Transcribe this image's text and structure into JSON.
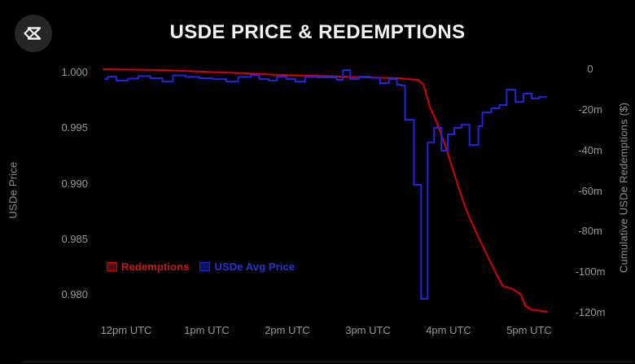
{
  "header": {
    "title": "USDE PRICE & REDEMPTIONS"
  },
  "logo": {
    "icon": "ethena-sigma-logo"
  },
  "colors": {
    "background": "#000000",
    "title_text": "#f2f2f2",
    "axis_text": "#969696",
    "red_line": "#d90000",
    "blue_line": "#2024e8",
    "legend_red_text": "#cc1414",
    "legend_blue_text": "#2433e0",
    "legend_red_fill": "#560d0d",
    "legend_blue_fill": "#0f1260"
  },
  "chart_data": {
    "type": "line",
    "title": "USDE PRICE & REDEMPTIONS",
    "grid": "off",
    "x_axis": {
      "unit": "hour of day (UTC, 24h decimal)",
      "tick_hours": [
        12,
        13,
        14,
        15,
        16,
        17
      ],
      "tick_labels": [
        "12pm UTC",
        "1pm UTC",
        "2pm UTC",
        "3pm UTC",
        "4pm UTC",
        "5pm UTC"
      ],
      "range_hours": [
        11.66,
        17.42
      ]
    },
    "y_left": {
      "label": "USDe Price",
      "ticks": [
        1.0,
        0.995,
        0.99,
        0.985,
        0.98
      ],
      "tick_labels": [
        "1.000",
        "0.995",
        "0.990",
        "0.985",
        "0.980"
      ],
      "range": [
        1.0005,
        0.9782
      ]
    },
    "y_right": {
      "label": "Cumulative USDe Redemptions ($)",
      "ticks": [
        0,
        -20,
        -40,
        -60,
        -80,
        -100,
        -120
      ],
      "tick_labels": [
        "0",
        "-20m",
        "-40m",
        "-60m",
        "-80m",
        "-100m",
        "-120m"
      ],
      "unit": "millions of dollars",
      "range": [
        1,
        -121.5
      ]
    },
    "legend": [
      {
        "label": "Redemptions",
        "series": "red"
      },
      {
        "label": "USDe Avg Price",
        "series": "blue"
      }
    ],
    "series": [
      {
        "name": "Redemptions",
        "axis": "right",
        "style": "line",
        "points": [
          [
            11.71,
            0
          ],
          [
            12.45,
            -0.4
          ],
          [
            13.06,
            -1.4
          ],
          [
            13.5,
            -2.0
          ],
          [
            13.77,
            -2.6
          ],
          [
            14.48,
            -3.4
          ],
          [
            14.98,
            -4.0
          ],
          [
            15.38,
            -4.4
          ],
          [
            15.62,
            -5.2
          ],
          [
            15.69,
            -7.6
          ],
          [
            15.77,
            -18.9
          ],
          [
            15.84,
            -24.9
          ],
          [
            15.89,
            -30.1
          ],
          [
            15.97,
            -38.9
          ],
          [
            16.06,
            -50.2
          ],
          [
            16.14,
            -60.2
          ],
          [
            16.22,
            -69.4
          ],
          [
            16.34,
            -80.3
          ],
          [
            16.5,
            -93.5
          ],
          [
            16.6,
            -101.5
          ],
          [
            16.67,
            -106.8
          ],
          [
            16.8,
            -108.3
          ],
          [
            16.9,
            -111.2
          ],
          [
            16.95,
            -116.4
          ],
          [
            17.02,
            -118.4
          ],
          [
            17.23,
            -119.6
          ]
        ]
      },
      {
        "name": "USDe Avg Price",
        "axis": "left",
        "style": "step-after",
        "end_hour": 17.22,
        "points": [
          [
            11.73,
            0.99941
          ],
          [
            11.77,
            0.99963
          ],
          [
            11.88,
            0.99927
          ],
          [
            12.02,
            0.99945
          ],
          [
            12.15,
            0.99967
          ],
          [
            12.3,
            0.99949
          ],
          [
            12.45,
            0.99919
          ],
          [
            12.58,
            0.99974
          ],
          [
            12.74,
            0.9996
          ],
          [
            12.91,
            0.99949
          ],
          [
            13.08,
            0.99941
          ],
          [
            13.24,
            0.99919
          ],
          [
            13.39,
            0.9996
          ],
          [
            13.55,
            0.99978
          ],
          [
            13.65,
            0.99941
          ],
          [
            13.77,
            0.99927
          ],
          [
            13.87,
            0.99963
          ],
          [
            13.99,
            0.99941
          ],
          [
            14.1,
            0.99919
          ],
          [
            14.22,
            0.9996
          ],
          [
            14.37,
            0.99956
          ],
          [
            14.61,
            0.99934
          ],
          [
            14.69,
            1.00022
          ],
          [
            14.78,
            0.99941
          ],
          [
            14.89,
            0.99963
          ],
          [
            15.03,
            0.99952
          ],
          [
            15.15,
            0.99905
          ],
          [
            15.26,
            0.99941
          ],
          [
            15.36,
            0.9989
          ],
          [
            15.41,
            0.99883
          ],
          [
            15.46,
            0.99575
          ],
          [
            15.57,
            0.9899
          ],
          [
            15.66,
            0.97965
          ],
          [
            15.74,
            0.9937
          ],
          [
            15.82,
            0.99502
          ],
          [
            15.91,
            0.99297
          ],
          [
            15.99,
            0.99444
          ],
          [
            16.07,
            0.99502
          ],
          [
            16.16,
            0.99531
          ],
          [
            16.26,
            0.99348
          ],
          [
            16.37,
            0.99517
          ],
          [
            16.42,
            0.99641
          ],
          [
            16.53,
            0.99678
          ],
          [
            16.63,
            0.99707
          ],
          [
            16.72,
            0.99846
          ],
          [
            16.83,
            0.99736
          ],
          [
            16.93,
            0.9981
          ],
          [
            17.03,
            0.99766
          ],
          [
            17.12,
            0.9978
          ]
        ]
      }
    ]
  }
}
